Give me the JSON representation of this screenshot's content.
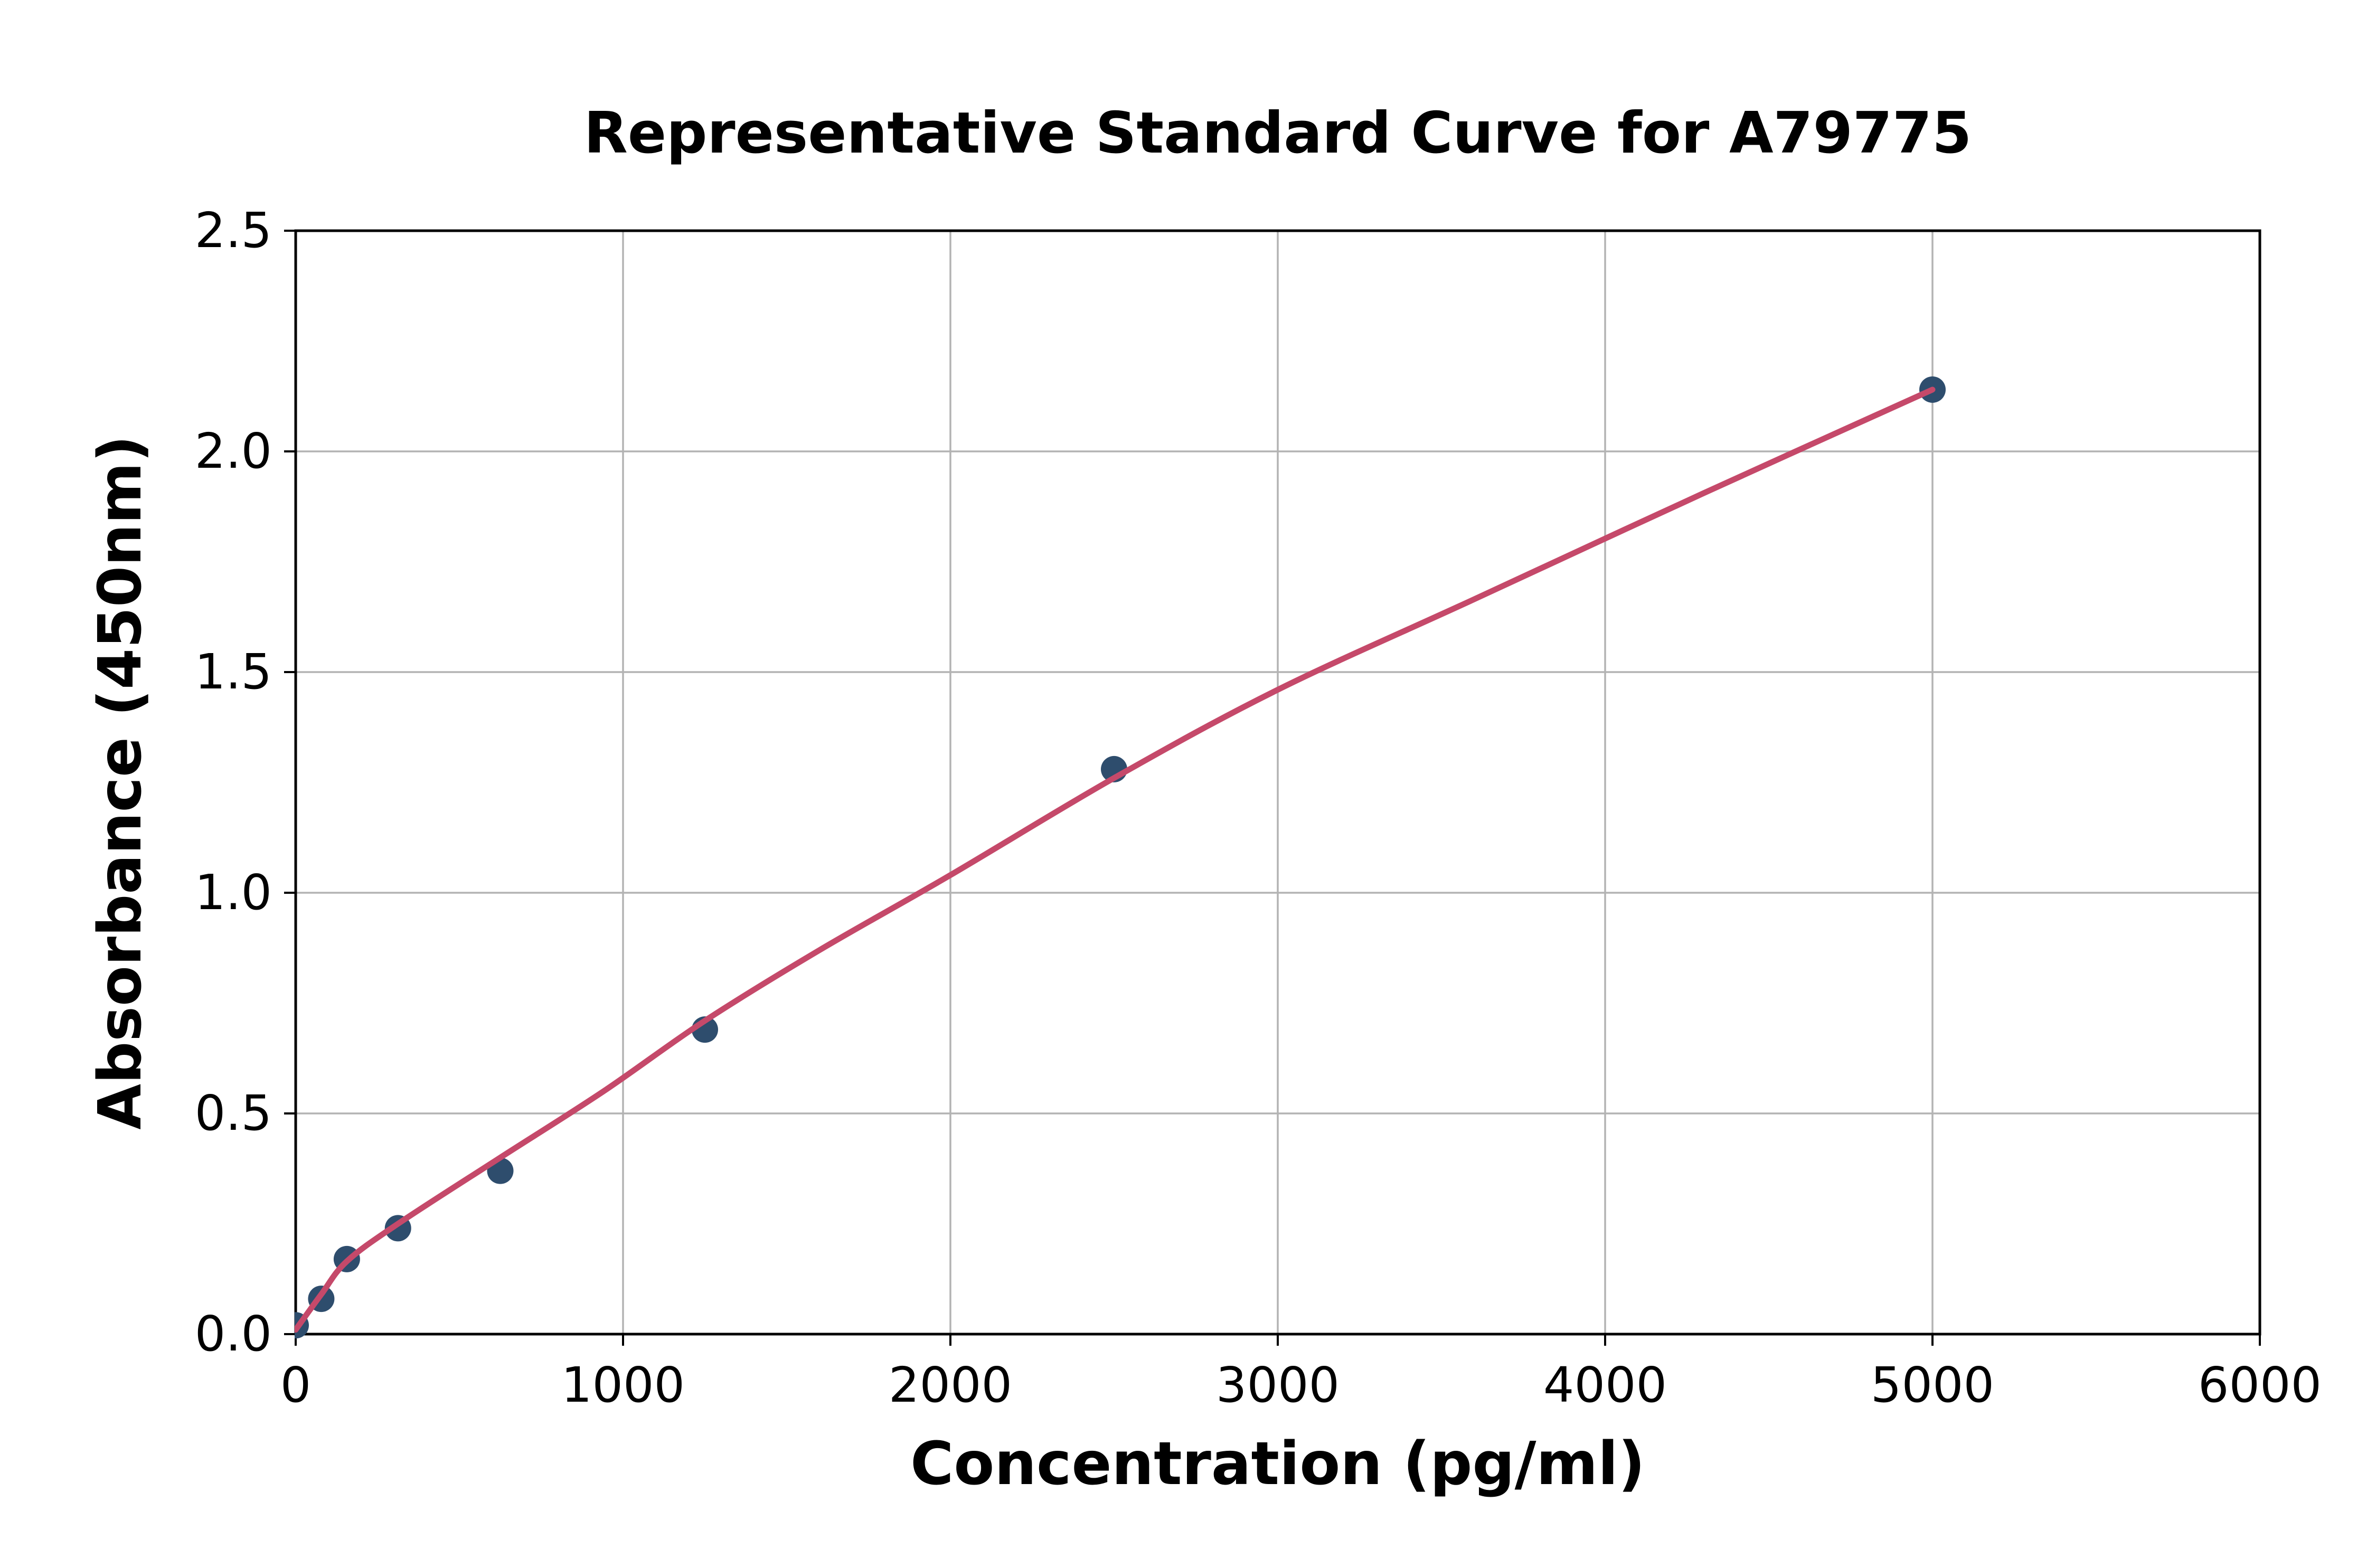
{
  "figure": {
    "background": "#ffffff",
    "frame_color": "#000000",
    "grid_color": "#b3b3b3"
  },
  "chart_data": {
    "type": "scatter",
    "title": "Representative Standard Curve for A79775",
    "xlabel": "Concentration (pg/ml)",
    "ylabel": "Absorbance (450nm)",
    "xlim": [
      0,
      6000
    ],
    "ylim": [
      0,
      2.5
    ],
    "grid": true,
    "legend": "none",
    "x_ticks": [
      {
        "v": 0,
        "label": "0"
      },
      {
        "v": 1000,
        "label": "1000"
      },
      {
        "v": 2000,
        "label": "2000"
      },
      {
        "v": 3000,
        "label": "3000"
      },
      {
        "v": 4000,
        "label": "4000"
      },
      {
        "v": 5000,
        "label": "5000"
      },
      {
        "v": 6000,
        "label": "6000"
      }
    ],
    "y_ticks": [
      {
        "v": 0.0,
        "label": "0.0"
      },
      {
        "v": 0.5,
        "label": "0.5"
      },
      {
        "v": 1.0,
        "label": "1.0"
      },
      {
        "v": 1.5,
        "label": "1.5"
      },
      {
        "v": 2.0,
        "label": "2.0"
      },
      {
        "v": 2.5,
        "label": "2.5"
      }
    ],
    "series": [
      {
        "name": "standard-points",
        "kind": "scatter",
        "color": "#2e4d6d",
        "marker_radius": 25,
        "points": [
          [
            0,
            0.02
          ],
          [
            78.1,
            0.08
          ],
          [
            156.3,
            0.17
          ],
          [
            312.5,
            0.24
          ],
          [
            625,
            0.37
          ],
          [
            1250,
            0.69
          ],
          [
            2500,
            1.28
          ],
          [
            5000,
            2.14
          ]
        ]
      },
      {
        "name": "fitted-curve",
        "kind": "line",
        "color": "#c5496a",
        "line_width": 11,
        "points": [
          [
            0,
            0.01
          ],
          [
            78.1,
            0.09
          ],
          [
            156.3,
            0.165
          ],
          [
            312.5,
            0.25
          ],
          [
            625,
            0.4
          ],
          [
            940,
            0.55
          ],
          [
            1250,
            0.71
          ],
          [
            1600,
            0.87
          ],
          [
            2000,
            1.04
          ],
          [
            2500,
            1.26
          ],
          [
            3000,
            1.46
          ],
          [
            3600,
            1.665
          ],
          [
            4300,
            1.905
          ],
          [
            5000,
            2.14
          ]
        ]
      }
    ]
  }
}
